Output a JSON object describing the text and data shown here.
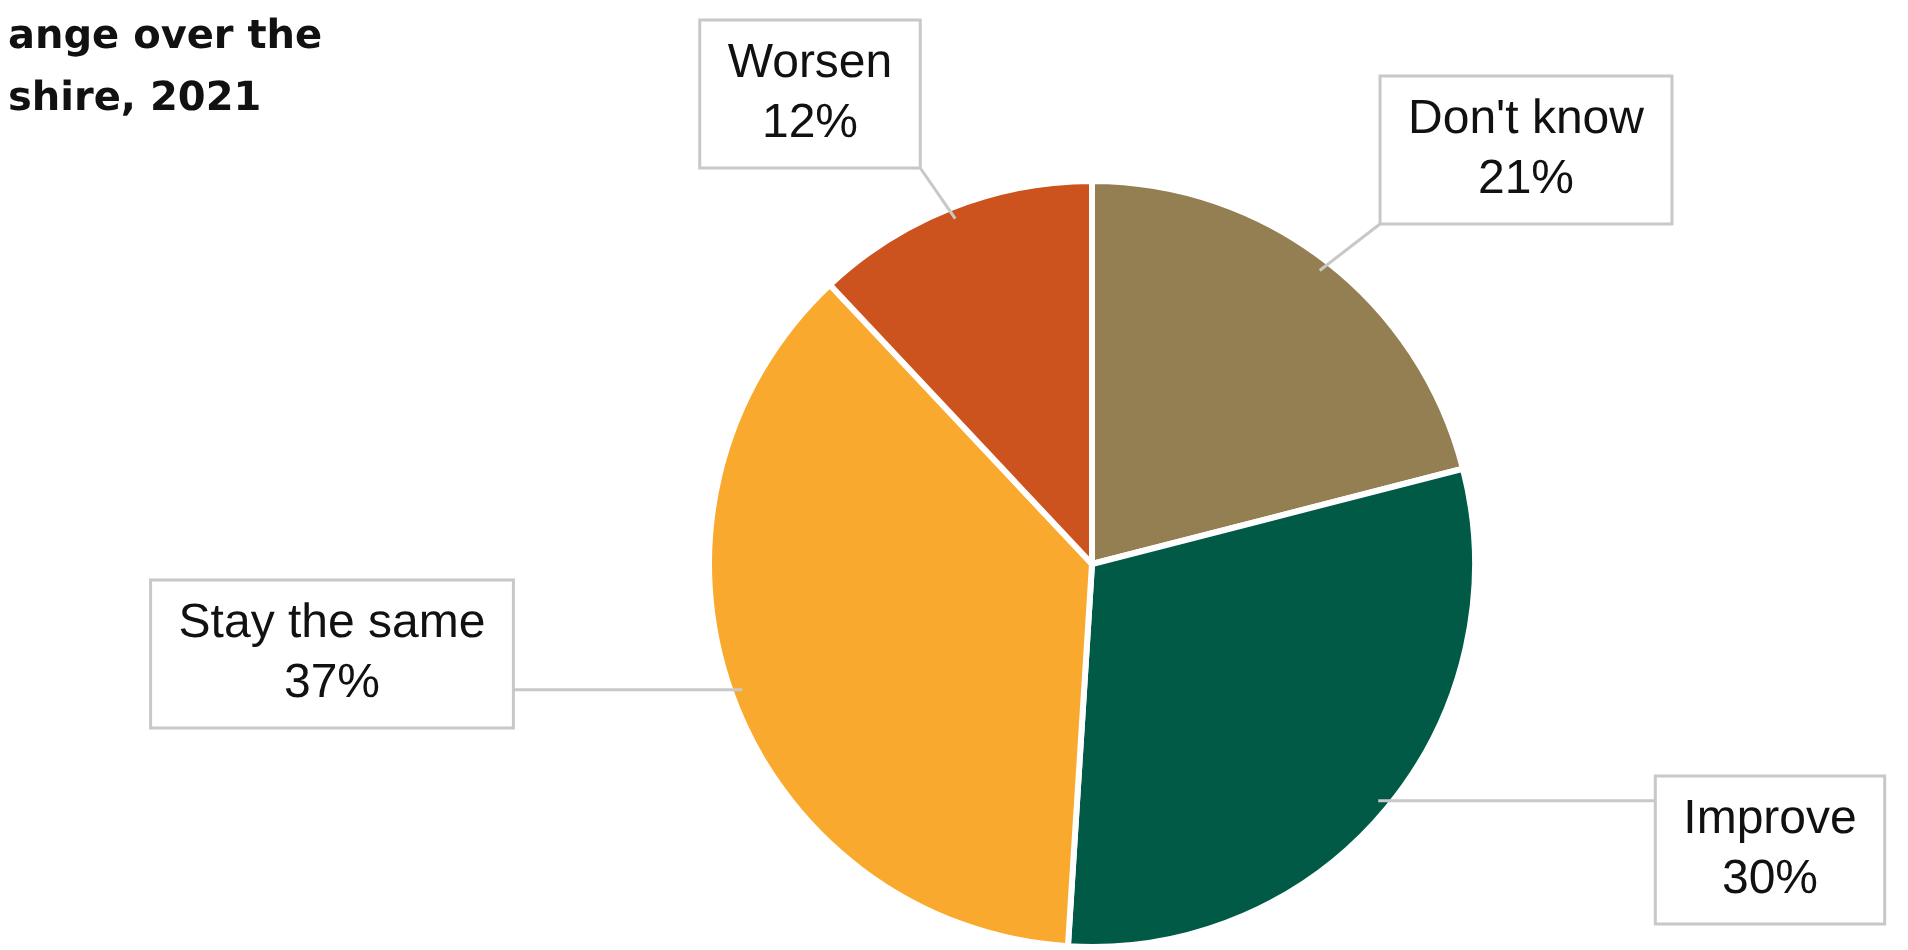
{
  "chart_data": {
    "type": "pie",
    "title": "ange over the\nshire, 2021",
    "categories": [
      "Don't know",
      "Improve",
      "Stay the same",
      "Worsen"
    ],
    "values": [
      21,
      30,
      37,
      12
    ],
    "value_labels": [
      "21%",
      "30%",
      "37%",
      "12%"
    ],
    "colors": [
      "#937f52",
      "#005a46",
      "#f9aa2e",
      "#cc531d"
    ],
    "legend": false
  }
}
